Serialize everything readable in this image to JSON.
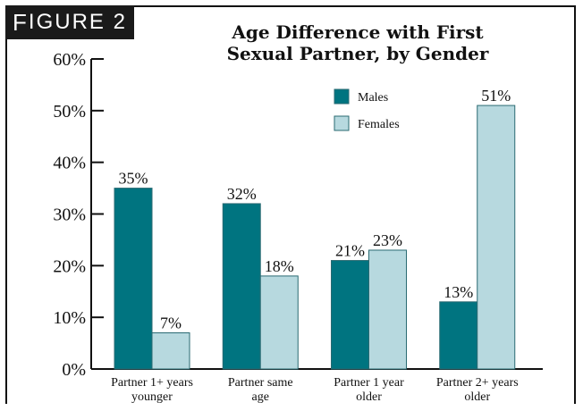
{
  "figure_label": {
    "prefix": "F",
    "rest": "IGURE 2"
  },
  "title_line1": "Age Difference with First",
  "title_line2": "Sexual Partner, by Gender",
  "colors": {
    "males": "#007480",
    "females": "#b7d9df",
    "edge": "#2a6a72"
  },
  "chart_data": {
    "type": "bar",
    "title": "Age Difference with First Sexual Partner, by Gender",
    "xlabel": "",
    "ylabel": "",
    "ylim": [
      0,
      60
    ],
    "yticks": [
      "0%",
      "10%",
      "20%",
      "30%",
      "40%",
      "50%",
      "60%"
    ],
    "categories": [
      [
        "Partner 1+ years",
        "younger"
      ],
      [
        "Partner same",
        "age"
      ],
      [
        "Partner 1 year",
        "older"
      ],
      [
        "Partner 2+ years",
        "older"
      ]
    ],
    "series": [
      {
        "name": "Males",
        "values": [
          35,
          32,
          21,
          13
        ],
        "labels": [
          "35%",
          "32%",
          "21%",
          "13%"
        ]
      },
      {
        "name": "Females",
        "values": [
          7,
          18,
          23,
          51
        ],
        "labels": [
          "7%",
          "18%",
          "23%",
          "51%"
        ]
      }
    ],
    "legend": "top-right",
    "grid": false
  }
}
